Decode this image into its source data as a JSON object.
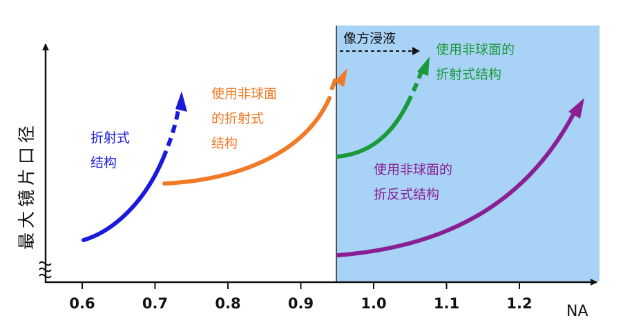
{
  "y_axis_label": "最大镜片口径",
  "x_axis_label": "NA",
  "x_ticks": [
    "0.6",
    "0.7",
    "0.8",
    "0.9",
    "1.0",
    "1.1",
    "1.2"
  ],
  "immersion_label": "像方浸液",
  "curves": {
    "refractive": {
      "lines": [
        "折射式",
        "结构"
      ],
      "color": "#1a1adc"
    },
    "aspheric_refractive": {
      "lines": [
        "使用非球面",
        "的折射式",
        "结构"
      ],
      "color": "#f07a26"
    },
    "immersion_refractive": {
      "lines": [
        "使用非球面的",
        "折射式结构"
      ],
      "color": "#1a9a3a"
    },
    "catadioptric": {
      "lines": [
        "使用非球面的",
        "折反式结构"
      ],
      "color": "#8a1f93"
    }
  },
  "colors": {
    "immersion_region": "#a9d2f7",
    "axis": "#111111"
  }
}
